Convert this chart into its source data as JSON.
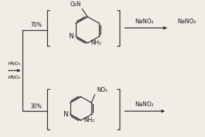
{
  "bg_color": "#f0ece6",
  "line_color": "#2a2a2a",
  "text_color": "#1a1a1a",
  "arrow_label_top": "HNO₃",
  "arrow_label_bottom": "HNO₂",
  "pct_top": "70%",
  "pct_bot": "30%",
  "arrow_top_label": "NaNO₂",
  "arrow_bot_label": "NaNO₂"
}
